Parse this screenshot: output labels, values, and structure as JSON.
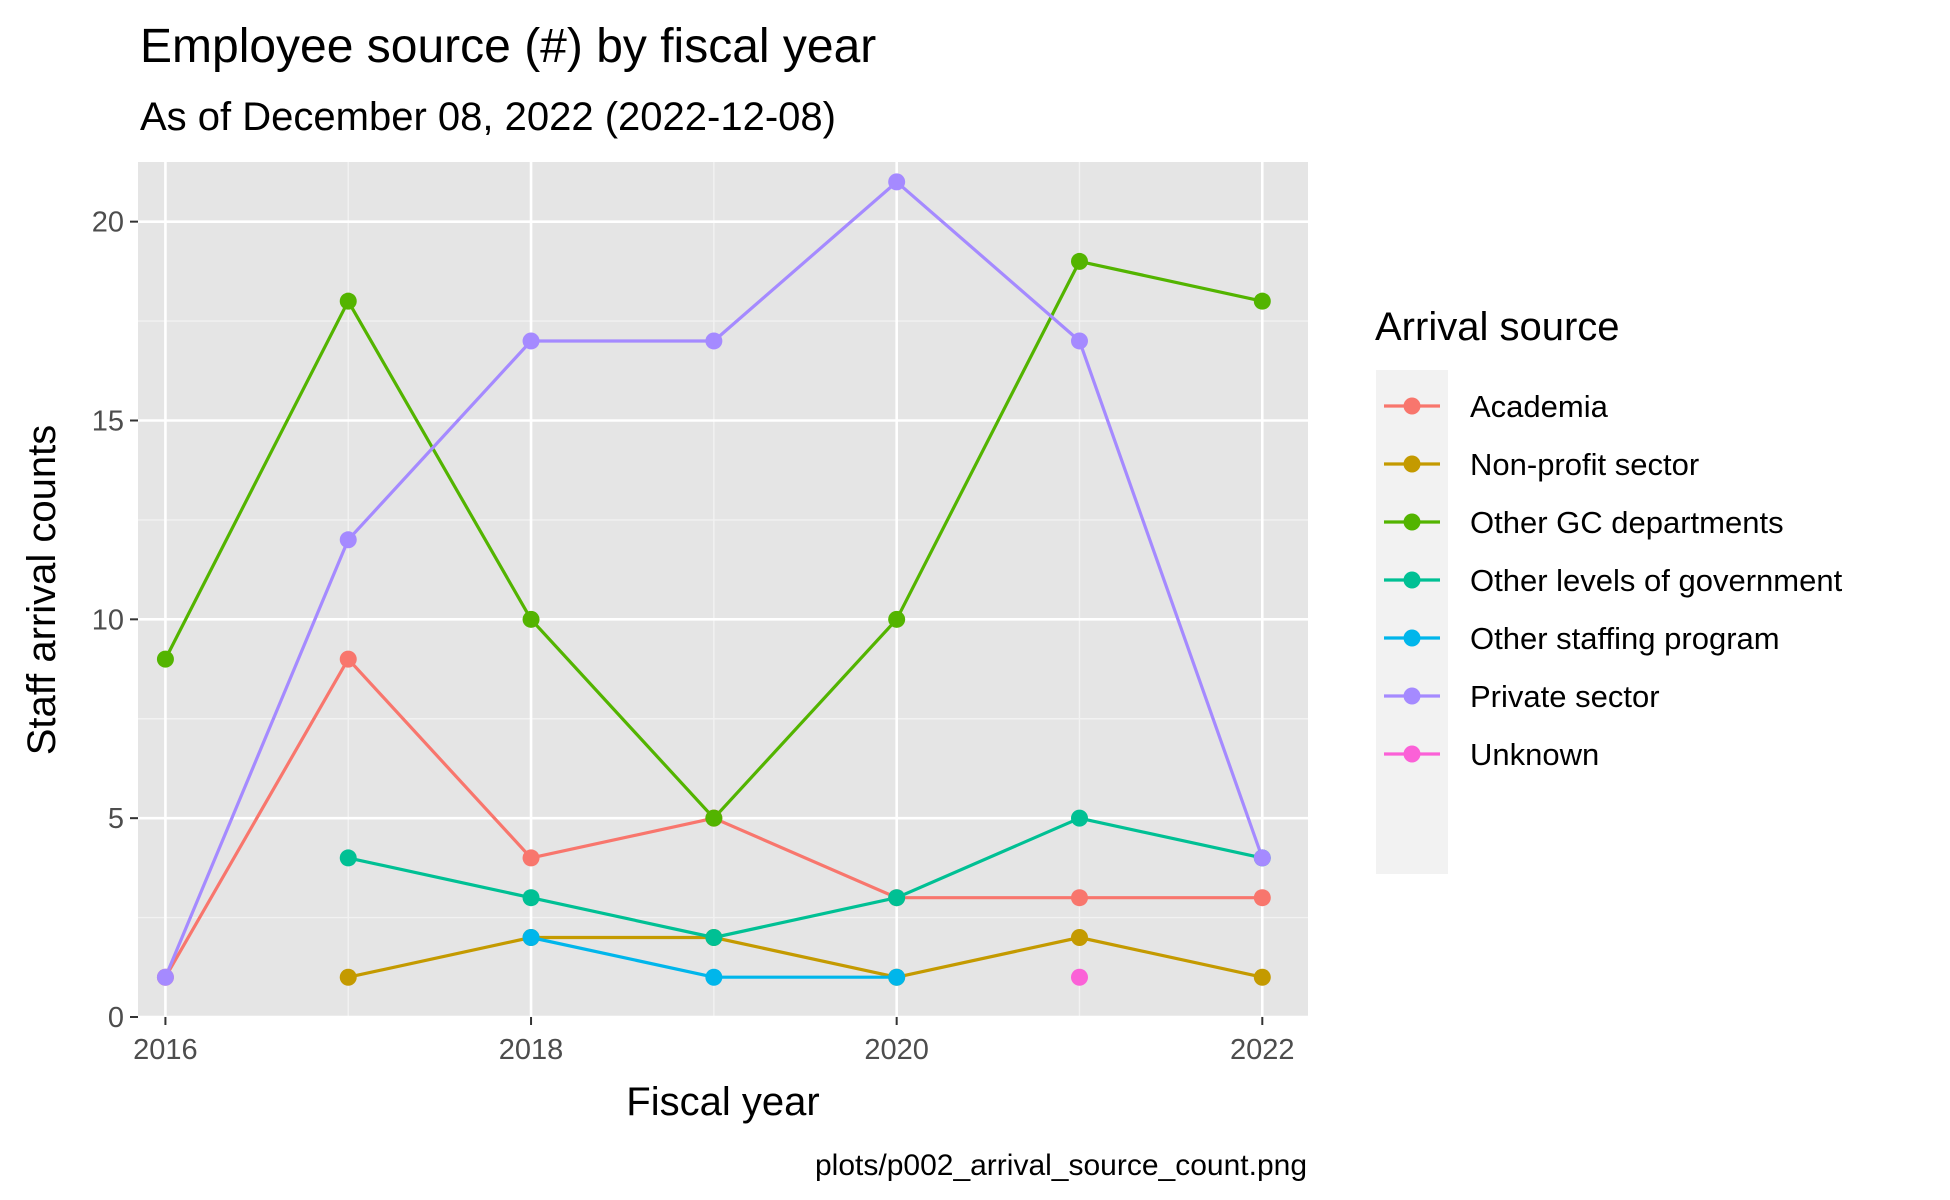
{
  "chart_data": {
    "type": "line",
    "title": "Employee source (#) by fiscal year",
    "subtitle": "As of December 08, 2022 (2022-12-08)",
    "xlabel": "Fiscal year",
    "ylabel": "Staff arrival counts",
    "caption": "plots/p002_arrival_source_count.png",
    "xlim": [
      2015.85,
      2022.25
    ],
    "ylim": [
      0,
      21.5
    ],
    "x_ticks": [
      2016,
      2018,
      2020,
      2022
    ],
    "y_ticks": [
      0,
      5,
      10,
      15,
      20
    ],
    "grid": true,
    "legend_title": "Arrival source",
    "legend_position": "right",
    "series": [
      {
        "name": "Academia",
        "color": "#F8766D",
        "points": [
          [
            2016,
            1
          ],
          [
            2017,
            9
          ],
          [
            2018,
            4
          ],
          [
            2019,
            5
          ],
          [
            2020,
            3
          ],
          [
            2021,
            3
          ],
          [
            2022,
            3
          ]
        ]
      },
      {
        "name": "Non-profit sector",
        "color": "#C49A00",
        "points": [
          [
            2017,
            1
          ],
          [
            2018,
            2
          ],
          [
            2019,
            2
          ],
          [
            2020,
            1
          ],
          [
            2021,
            2
          ],
          [
            2022,
            1
          ]
        ]
      },
      {
        "name": "Other GC departments",
        "color": "#53B400",
        "points": [
          [
            2016,
            9
          ],
          [
            2017,
            18
          ],
          [
            2018,
            10
          ],
          [
            2019,
            5
          ],
          [
            2020,
            10
          ],
          [
            2021,
            19
          ],
          [
            2022,
            18
          ]
        ]
      },
      {
        "name": "Other levels of government",
        "color": "#00C094",
        "points": [
          [
            2017,
            4
          ],
          [
            2018,
            3
          ],
          [
            2019,
            2
          ],
          [
            2020,
            3
          ],
          [
            2021,
            5
          ],
          [
            2022,
            4
          ]
        ]
      },
      {
        "name": "Other staffing program",
        "color": "#00B6EB",
        "points": [
          [
            2018,
            2
          ],
          [
            2019,
            1
          ],
          [
            2020,
            1
          ]
        ]
      },
      {
        "name": "Private sector",
        "color": "#A58AFF",
        "points": [
          [
            2016,
            1
          ],
          [
            2017,
            12
          ],
          [
            2018,
            17
          ],
          [
            2019,
            17
          ],
          [
            2020,
            21
          ],
          [
            2021,
            17
          ],
          [
            2022,
            4
          ]
        ]
      },
      {
        "name": "Unknown",
        "color": "#FB61D7",
        "points": [
          [
            2021,
            1
          ]
        ]
      }
    ]
  }
}
